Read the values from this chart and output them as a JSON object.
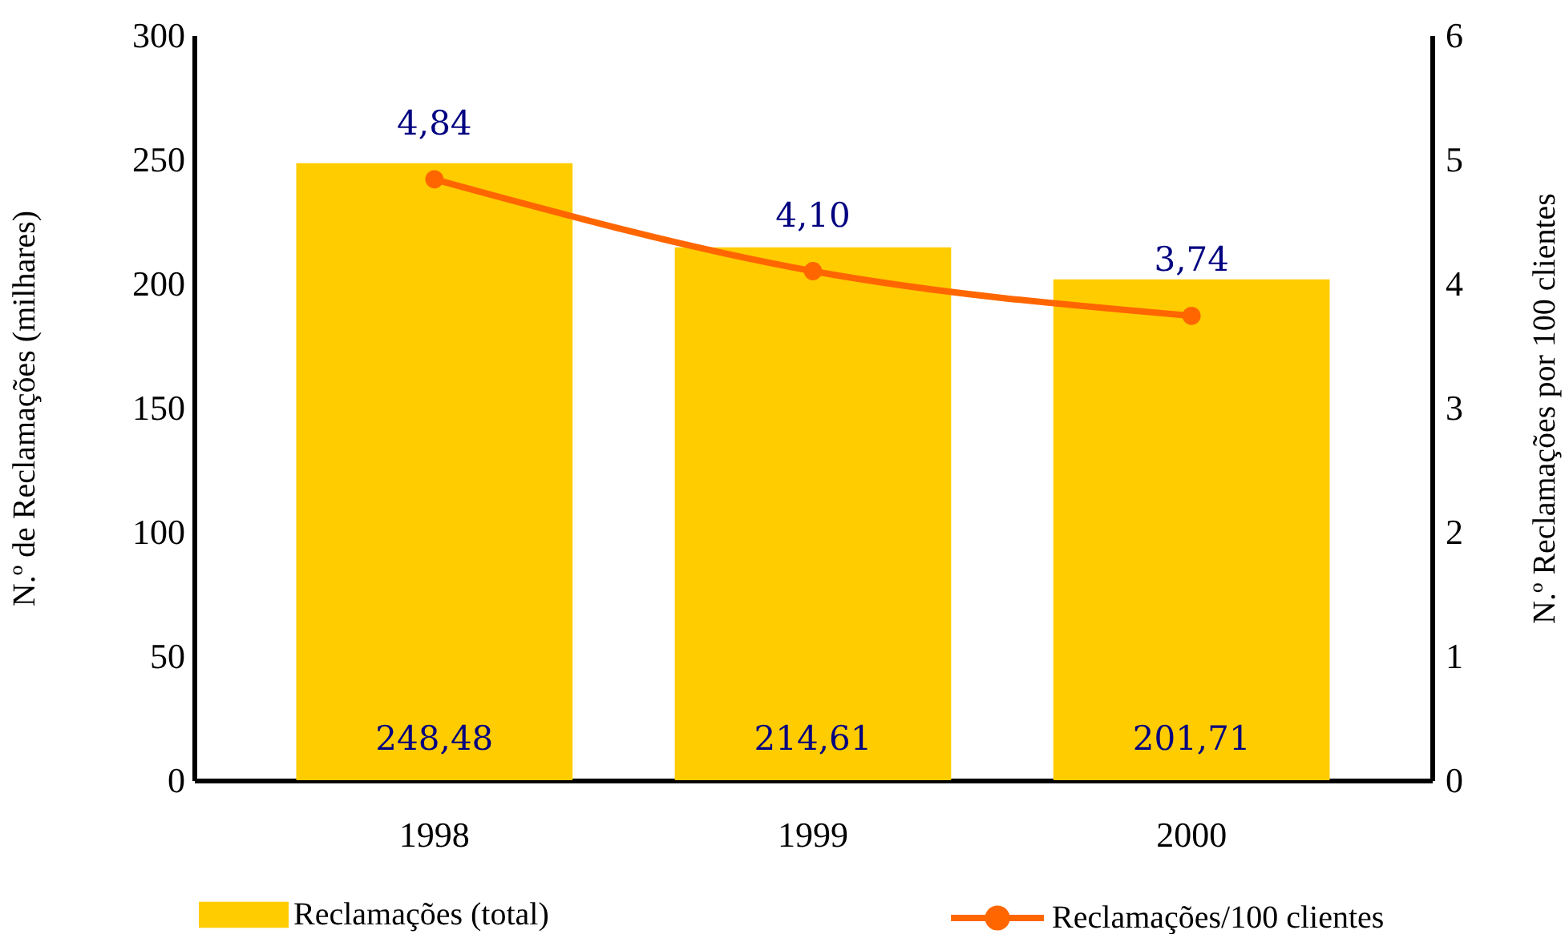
{
  "chart_data": {
    "type": "bar",
    "categories": [
      "1998",
      "1999",
      "2000"
    ],
    "ylabel": "N.º de Reclamações (milhares)",
    "y2label": "N.º Reclamações por 100 clientes",
    "series": [
      {
        "name": "Reclamações (total)",
        "color": "#ffcc00",
        "values": [
          248.48,
          214.61,
          201.71
        ],
        "value_labels": [
          "248,48",
          "214,61",
          "201,71"
        ]
      },
      {
        "name": "Reclamações/100 clientes",
        "type": "line",
        "axis": "y2",
        "color": "#ff6600",
        "marker": "circle",
        "values": [
          4.84,
          4.1,
          3.74
        ],
        "value_labels": [
          "4,84",
          "4,10",
          "3,74"
        ]
      }
    ],
    "ylim": [
      0,
      300
    ],
    "yticks": [
      0,
      50,
      100,
      150,
      200,
      250,
      300
    ],
    "y2lim": [
      0,
      6
    ],
    "y2ticks": [
      0,
      1,
      2,
      3,
      4,
      5,
      6
    ],
    "grid": false,
    "legend": "bottom"
  }
}
